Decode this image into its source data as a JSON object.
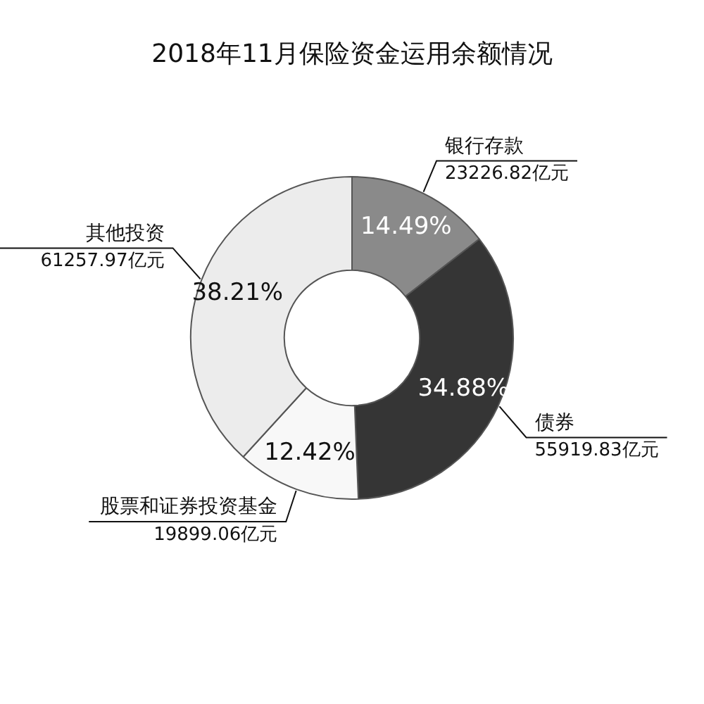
{
  "chart_data": {
    "type": "donut",
    "title": "2018年11月保险资金运用余额情况",
    "categories": [
      "银行存款",
      "债券",
      "股票和证券投资基金",
      "其他投资"
    ],
    "values": [
      14.49,
      34.88,
      12.42,
      38.21
    ],
    "colors": [
      "#8a8a8a",
      "#353535",
      "#f8f8f8",
      "#ececec"
    ],
    "value_labels": [
      "14.49%",
      "34.88%",
      "12.42%",
      "38.21%"
    ],
    "annotations": [
      "23226.82亿元",
      "55919.83亿元",
      "19899.06亿元",
      "61257.97亿元"
    ],
    "legend": false
  }
}
